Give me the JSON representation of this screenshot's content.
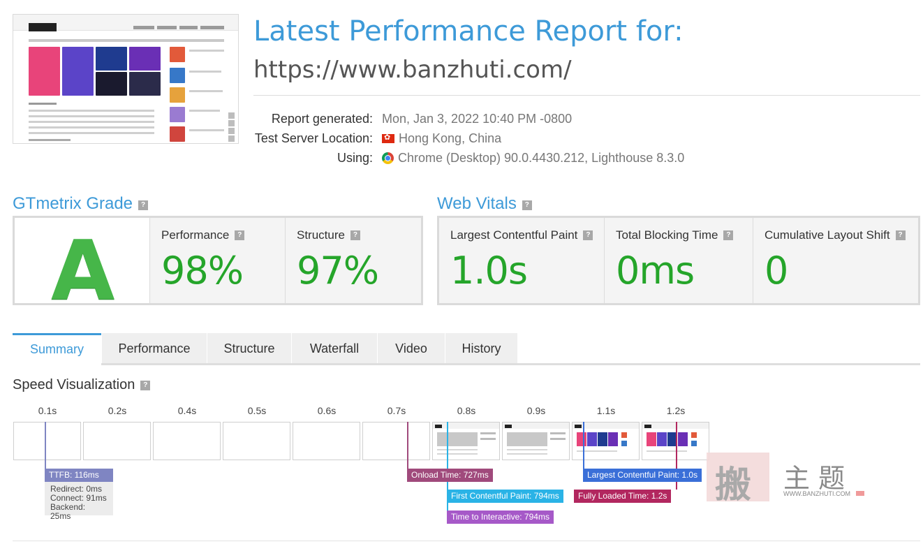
{
  "header": {
    "title": "Latest Performance Report for:",
    "url": "https://www.banzhuti.com/",
    "meta": [
      {
        "label": "Report generated:",
        "value": "Mon, Jan 3, 2022 10:40 PM -0800",
        "icon": ""
      },
      {
        "label": "Test Server Location:",
        "value": "Hong Kong, China",
        "icon": "hong-kong-flag-icon"
      },
      {
        "label": "Using:",
        "value": "Chrome (Desktop) 90.0.4430.212, Lighthouse 8.3.0",
        "icon": "chrome-icon"
      }
    ]
  },
  "grade": {
    "title": "GTmetrix Grade",
    "help": "?",
    "letter": "A",
    "performance_label": "Performance",
    "performance_value": "98%",
    "structure_label": "Structure",
    "structure_value": "97%"
  },
  "vitals": {
    "title": "Web Vitals",
    "help": "?",
    "lcp_label": "Largest Contentful Paint",
    "lcp_value": "1.0s",
    "tbt_label": "Total Blocking Time",
    "tbt_value": "0ms",
    "cls_label": "Cumulative Layout Shift",
    "cls_value": "0"
  },
  "tabs": [
    {
      "label": "Summary",
      "active": true
    },
    {
      "label": "Performance",
      "active": false
    },
    {
      "label": "Structure",
      "active": false
    },
    {
      "label": "Waterfall",
      "active": false
    },
    {
      "label": "Video",
      "active": false
    },
    {
      "label": "History",
      "active": false
    }
  ],
  "speed_viz": {
    "title": "Speed Visualization",
    "help": "?",
    "ticks": [
      "0.1s",
      "0.2s",
      "0.4s",
      "0.5s",
      "0.6s",
      "0.7s",
      "0.8s",
      "0.9s",
      "1.1s",
      "1.2s"
    ],
    "markers": {
      "ttfb": "TTFB: 116ms",
      "redirect": "Redirect: 0ms",
      "connect": "Connect: 91ms",
      "backend": "Backend: 25ms",
      "onload": "Onload Time: 727ms",
      "fcp": "First Contentful Paint: 794ms",
      "tti": "Time to Interactive: 794ms",
      "lcp": "Largest Contentful Paint: 1.0s",
      "fully_loaded": "Fully Loaded Time: 1.2s"
    },
    "colors": {
      "ttfb": "#7f85c2",
      "onload": "#a04a7c",
      "fcp": "#2ab3e6",
      "tti": "#a659c8",
      "lcp": "#3a6fd8",
      "fully_loaded": "#b2275f"
    }
  },
  "watermark": {
    "stamp": "搬",
    "text": "主题",
    "url": "WWW.BANZHUTI.COM"
  }
}
